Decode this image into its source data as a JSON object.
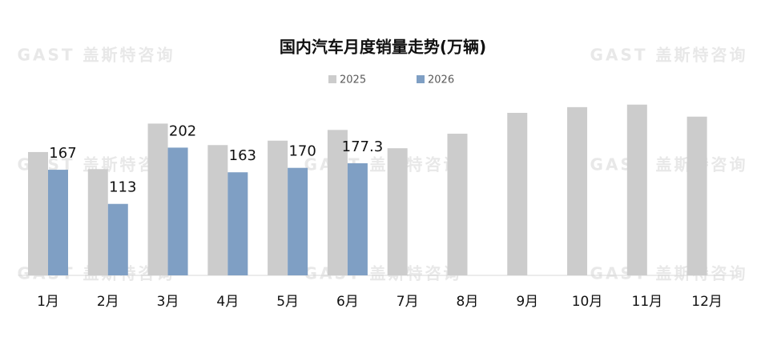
{
  "chart_data": {
    "type": "bar",
    "title": "国内汽车月度销量走势(万辆)",
    "watermark": "GAST 盖斯特咨询",
    "categories": [
      "1月",
      "2月",
      "3月",
      "4月",
      "5月",
      "6月",
      "7月",
      "8月",
      "9月",
      "10月",
      "11月",
      "12月"
    ],
    "series": [
      {
        "name": "2025",
        "color": "#cccccc",
        "values": [
          195,
          168,
          240,
          206,
          213,
          230,
          201,
          224,
          257,
          266,
          270,
          251
        ]
      },
      {
        "name": "2026",
        "color": "#7f9fc4",
        "values": [
          167,
          113,
          202,
          163,
          170,
          177.3,
          null,
          null,
          null,
          null,
          null,
          null
        ]
      }
    ],
    "ylim": [
      0,
      300
    ],
    "legend": "top"
  }
}
